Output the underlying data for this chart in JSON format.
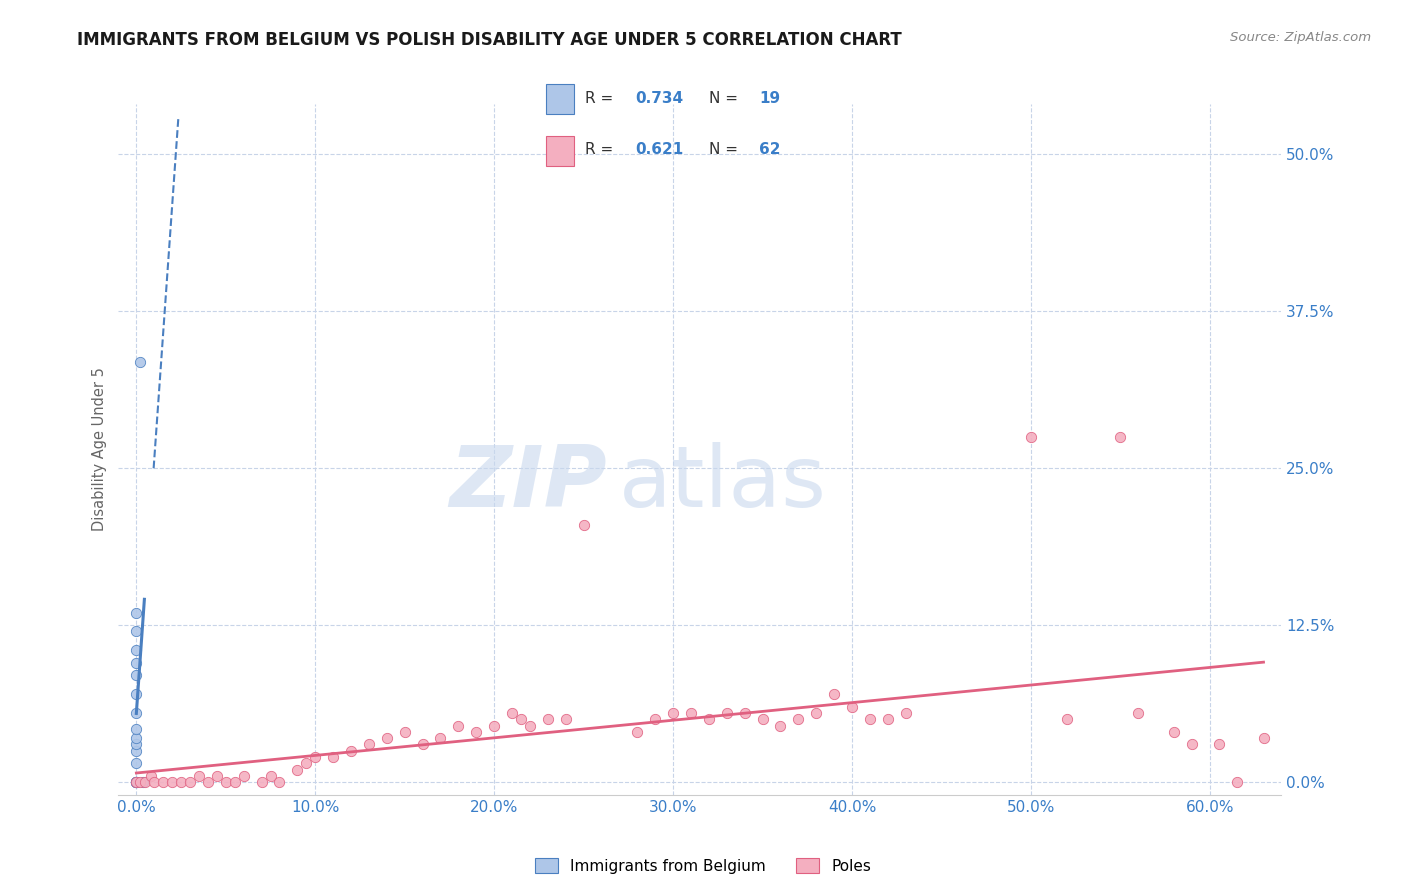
{
  "title": "IMMIGRANTS FROM BELGIUM VS POLISH DISABILITY AGE UNDER 5 CORRELATION CHART",
  "source": "Source: ZipAtlas.com",
  "ylabel": "Disability Age Under 5",
  "x_ticks": [
    0.0,
    10.0,
    20.0,
    30.0,
    40.0,
    50.0,
    60.0
  ],
  "y_ticks": [
    0.0,
    12.5,
    25.0,
    37.5,
    50.0
  ],
  "x_tick_labels": [
    "0.0%",
    "10.0%",
    "20.0%",
    "30.0%",
    "40.0%",
    "50.0%",
    "60.0%"
  ],
  "y_tick_labels": [
    "0.0%",
    "12.5%",
    "25.0%",
    "37.5%",
    "50.0%"
  ],
  "xlim": [
    -1.0,
    64
  ],
  "ylim": [
    -1.0,
    54
  ],
  "background_color": "#ffffff",
  "grid_color": "#c8d4e8",
  "scatter_blue": "#aec6e8",
  "scatter_pink": "#f4afc0",
  "trend_blue": "#4a7fc0",
  "trend_pink": "#e06080",
  "title_color": "#1a1a1a",
  "legend_text_color": "#3a7ec8",
  "axis_label_color": "#666666",
  "tick_color": "#3a7ec8",
  "watermark_color": "#c8d8ee",
  "legend_R1": "0.734",
  "legend_N1": "19",
  "legend_R2": "0.621",
  "legend_N2": "62",
  "legend_label1": "Immigrants from Belgium",
  "legend_label2": "Poles",
  "belgium_scatter": [
    [
      0.0,
      0.0
    ],
    [
      0.0,
      0.0
    ],
    [
      0.0,
      0.0
    ],
    [
      0.0,
      0.0
    ],
    [
      0.0,
      0.0
    ],
    [
      0.0,
      1.5
    ],
    [
      0.0,
      2.5
    ],
    [
      0.0,
      3.0
    ],
    [
      0.0,
      3.5
    ],
    [
      0.0,
      4.2
    ],
    [
      0.0,
      5.5
    ],
    [
      0.0,
      7.0
    ],
    [
      0.0,
      8.5
    ],
    [
      0.0,
      9.5
    ],
    [
      0.0,
      10.5
    ],
    [
      0.0,
      12.0
    ],
    [
      0.0,
      13.5
    ],
    [
      0.18,
      33.5
    ],
    [
      0.35,
      0.0
    ]
  ],
  "poles_scatter": [
    [
      0.0,
      0.0
    ],
    [
      0.2,
      0.0
    ],
    [
      0.5,
      0.0
    ],
    [
      0.8,
      0.5
    ],
    [
      1.0,
      0.0
    ],
    [
      1.5,
      0.0
    ],
    [
      2.0,
      0.0
    ],
    [
      2.5,
      0.0
    ],
    [
      3.0,
      0.0
    ],
    [
      3.5,
      0.5
    ],
    [
      4.0,
      0.0
    ],
    [
      4.5,
      0.5
    ],
    [
      5.0,
      0.0
    ],
    [
      5.5,
      0.0
    ],
    [
      6.0,
      0.5
    ],
    [
      7.0,
      0.0
    ],
    [
      7.5,
      0.5
    ],
    [
      8.0,
      0.0
    ],
    [
      9.0,
      1.0
    ],
    [
      9.5,
      1.5
    ],
    [
      10.0,
      2.0
    ],
    [
      11.0,
      2.0
    ],
    [
      12.0,
      2.5
    ],
    [
      13.0,
      3.0
    ],
    [
      14.0,
      3.5
    ],
    [
      15.0,
      4.0
    ],
    [
      16.0,
      3.0
    ],
    [
      17.0,
      3.5
    ],
    [
      18.0,
      4.5
    ],
    [
      19.0,
      4.0
    ],
    [
      20.0,
      4.5
    ],
    [
      21.0,
      5.5
    ],
    [
      21.5,
      5.0
    ],
    [
      22.0,
      4.5
    ],
    [
      23.0,
      5.0
    ],
    [
      24.0,
      5.0
    ],
    [
      25.0,
      20.5
    ],
    [
      28.0,
      4.0
    ],
    [
      29.0,
      5.0
    ],
    [
      30.0,
      5.5
    ],
    [
      31.0,
      5.5
    ],
    [
      32.0,
      5.0
    ],
    [
      33.0,
      5.5
    ],
    [
      34.0,
      5.5
    ],
    [
      35.0,
      5.0
    ],
    [
      36.0,
      4.5
    ],
    [
      37.0,
      5.0
    ],
    [
      38.0,
      5.5
    ],
    [
      39.0,
      7.0
    ],
    [
      40.0,
      6.0
    ],
    [
      41.0,
      5.0
    ],
    [
      42.0,
      5.0
    ],
    [
      43.0,
      5.5
    ],
    [
      50.0,
      27.5
    ],
    [
      52.0,
      5.0
    ],
    [
      55.0,
      27.5
    ],
    [
      56.0,
      5.5
    ],
    [
      58.0,
      4.0
    ],
    [
      59.0,
      3.0
    ],
    [
      60.5,
      3.0
    ],
    [
      61.5,
      0.0
    ],
    [
      63.0,
      3.5
    ]
  ]
}
